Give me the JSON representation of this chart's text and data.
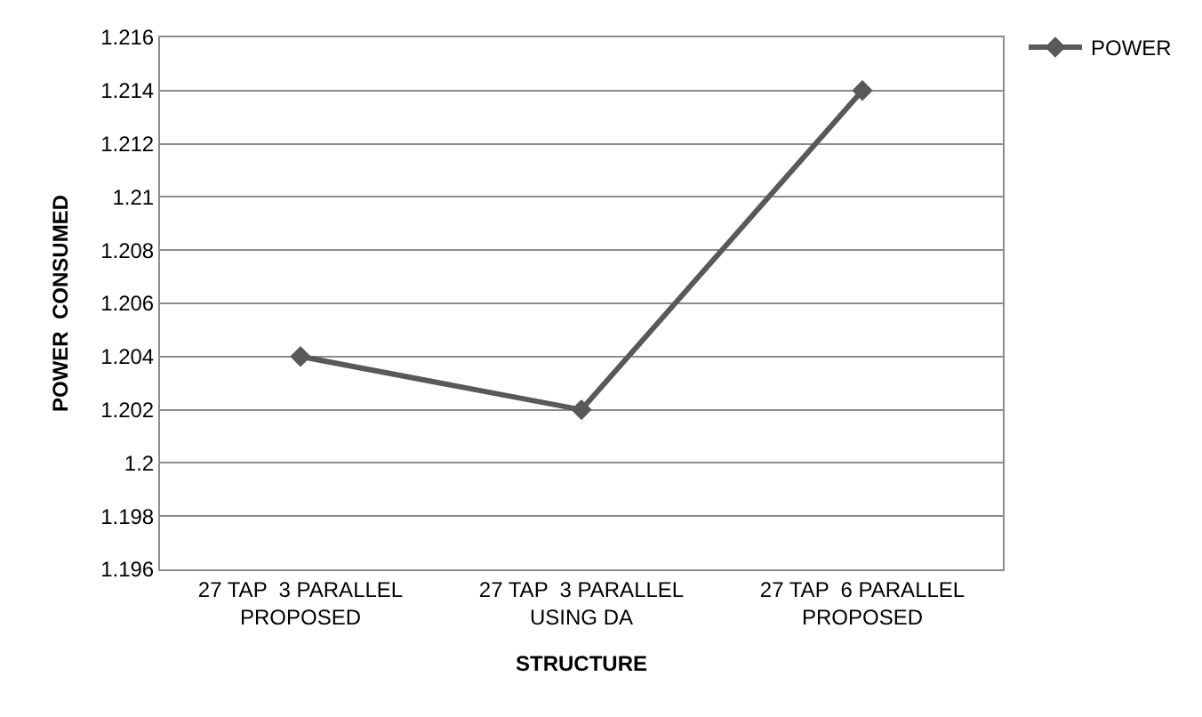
{
  "chart_data": {
    "type": "line",
    "xlabel": "STRUCTURE",
    "ylabel": "POWER  CONSUMED",
    "categories": [
      "27 TAP  3 PARALLEL\nPROPOSED",
      "27 TAP  3 PARALLEL\nUSING DA",
      "27 TAP  6 PARALLEL\nPROPOSED"
    ],
    "series": [
      {
        "name": "POWER",
        "color": "#595959",
        "values": [
          1.204,
          1.202,
          1.214
        ]
      }
    ],
    "ylim": [
      1.196,
      1.216
    ],
    "yticks": [
      1.196,
      1.198,
      1.2,
      1.202,
      1.204,
      1.206,
      1.208,
      1.21,
      1.212,
      1.214,
      1.216
    ],
    "grid": "y",
    "legend": "top right",
    "marker": "diamond",
    "line_style": "solid"
  }
}
